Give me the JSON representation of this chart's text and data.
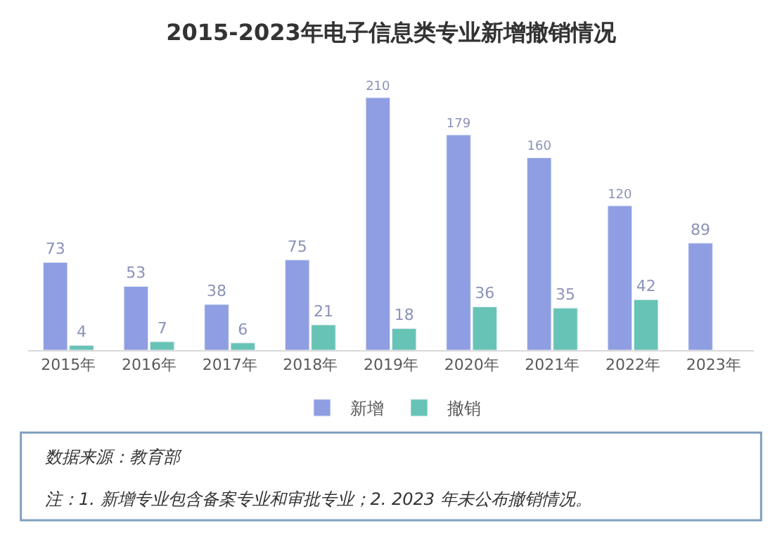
{
  "chart_data": {
    "type": "bar",
    "title": "2015-2023年电子信息类专业新增撤销情况",
    "categories": [
      "2015年",
      "2016年",
      "2017年",
      "2018年",
      "2019年",
      "2020年",
      "2021年",
      "2022年",
      "2023年"
    ],
    "series": [
      {
        "name": "新增",
        "color": "#8f9de2",
        "values": [
          73,
          53,
          38,
          75,
          210,
          179,
          160,
          120,
          89
        ]
      },
      {
        "name": "撤销",
        "color": "#67c3b5",
        "values": [
          4,
          7,
          6,
          21,
          18,
          36,
          35,
          42,
          null
        ]
      }
    ],
    "data_labels": true,
    "legend": "bottom",
    "annotations": [
      "数据来源：教育部",
      "注：1. 新增专业包含备案专业和审批专业；2. 2023 年未公布撤销情况。"
    ]
  }
}
